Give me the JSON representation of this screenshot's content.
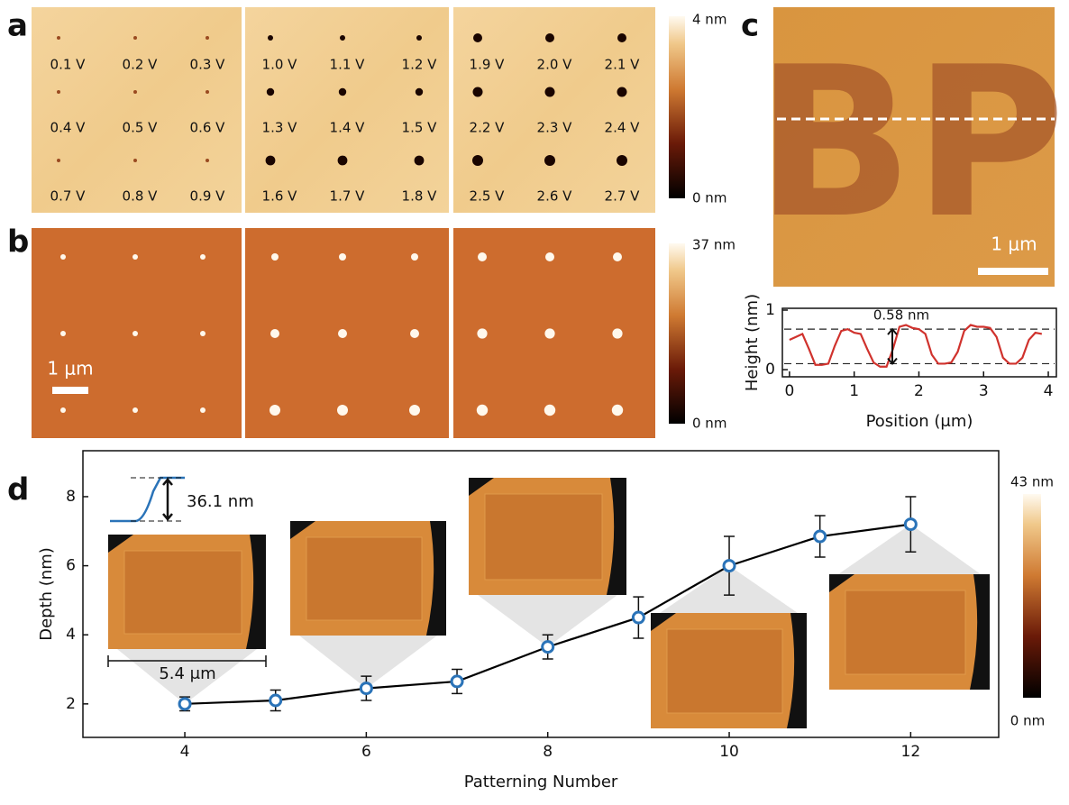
{
  "panels": {
    "a": {
      "label": "a",
      "voltages": [
        "0.1 V",
        "0.2 V",
        "0.3 V",
        "0.4 V",
        "0.5 V",
        "0.6 V",
        "0.7 V",
        "0.8 V",
        "0.9 V",
        "1.0 V",
        "1.1 V",
        "1.2 V",
        "1.3 V",
        "1.4 V",
        "1.5 V",
        "1.6 V",
        "1.7 V",
        "1.8 V",
        "1.9 V",
        "2.0 V",
        "2.1 V",
        "2.2 V",
        "2.3 V",
        "2.4 V",
        "2.5 V",
        "2.6 V",
        "2.7 V"
      ],
      "colorbar_max": "4 nm",
      "colorbar_min": "0 nm"
    },
    "b": {
      "label": "b",
      "scale_bar": "1 μm",
      "colorbar_max": "37 nm",
      "colorbar_min": "0 nm"
    },
    "c": {
      "label": "c",
      "pattern_text": "BP",
      "scale_bar": "1 μm"
    },
    "d": {
      "label": "d"
    }
  },
  "chart_data": [
    {
      "type": "line",
      "xlabel": "Position (μm)",
      "ylabel": "Height (nm)",
      "x": [
        0,
        0.1,
        0.2,
        0.3,
        0.4,
        0.5,
        0.6,
        0.7,
        0.8,
        0.9,
        1.0,
        1.1,
        1.2,
        1.3,
        1.4,
        1.5,
        1.6,
        1.7,
        1.8,
        1.9,
        2.0,
        2.1,
        2.2,
        2.3,
        2.4,
        2.5,
        2.6,
        2.7,
        2.8,
        2.9,
        3.0,
        3.1,
        3.2,
        3.3,
        3.4,
        3.5,
        3.6,
        3.7,
        3.8,
        3.9
      ],
      "series": [
        {
          "color": "#d0322d",
          "values": [
            0.5,
            0.55,
            0.6,
            0.35,
            0.08,
            0.08,
            0.1,
            0.4,
            0.65,
            0.68,
            0.62,
            0.6,
            0.35,
            0.12,
            0.05,
            0.05,
            0.35,
            0.72,
            0.75,
            0.7,
            0.68,
            0.6,
            0.25,
            0.1,
            0.1,
            0.12,
            0.3,
            0.65,
            0.75,
            0.72,
            0.72,
            0.7,
            0.55,
            0.2,
            0.1,
            0.1,
            0.2,
            0.5,
            0.62,
            0.6
          ]
        }
      ],
      "reference_lines": [
        0.1,
        0.68
      ],
      "annotation": "0.58 nm",
      "xlim": [
        -0.11,
        4.125
      ],
      "xticks": [
        0,
        1,
        2,
        3,
        4
      ],
      "ylim": [
        -0.12,
        1.03
      ],
      "yticks": [
        0,
        1
      ]
    },
    {
      "type": "line",
      "xlabel": "Patterning Number",
      "ylabel": "Depth (nm)",
      "x": [
        4,
        5,
        6,
        7,
        8,
        9,
        10,
        11,
        12
      ],
      "series": [
        {
          "color": "#000000",
          "marker_color": "#2a73b8",
          "values": [
            2.0,
            2.1,
            2.45,
            2.65,
            3.65,
            4.5,
            6.0,
            6.85,
            7.2
          ],
          "errors": [
            0.2,
            0.3,
            0.35,
            0.35,
            0.35,
            0.6,
            0.85,
            0.6,
            0.8
          ]
        }
      ],
      "annotations": [
        "36.1 nm",
        "5.4 μm"
      ],
      "colorbar_max": "43 nm",
      "colorbar_min": "0 nm",
      "xlim": [
        2.877,
        12.97
      ],
      "xticks": [
        4,
        6,
        8,
        10,
        12
      ],
      "ylim": [
        1.03,
        9.33
      ],
      "yticks": [
        2,
        4,
        6,
        8
      ]
    }
  ]
}
